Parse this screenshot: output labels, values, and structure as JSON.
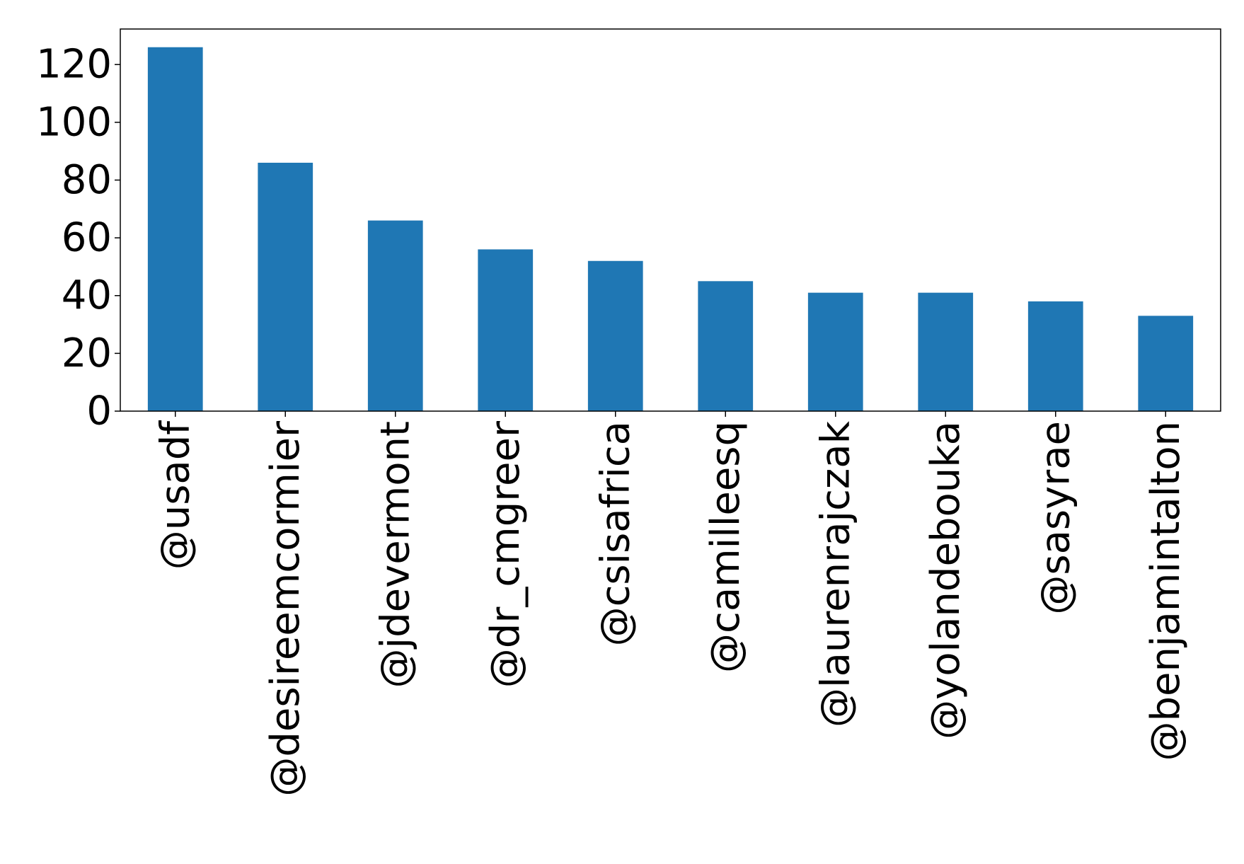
{
  "chart_data": {
    "type": "bar",
    "categories": [
      "@usadf",
      "@desireemcormier",
      "@jdevermont",
      "@dr_cmgreer",
      "@csisafrica",
      "@camilleesq",
      "@laurenrajczak",
      "@yolandebouka",
      "@sasyrae",
      "@benjamintalton"
    ],
    "values": [
      126,
      86,
      66,
      56,
      52,
      45,
      41,
      41,
      38,
      33
    ],
    "title": "",
    "xlabel": "",
    "ylabel": "",
    "ylim": [
      0,
      132.3
    ],
    "yticks": [
      0,
      20,
      40,
      60,
      80,
      100,
      120
    ],
    "grid": false,
    "legend": "none",
    "bar_color": "#1f77b4"
  }
}
